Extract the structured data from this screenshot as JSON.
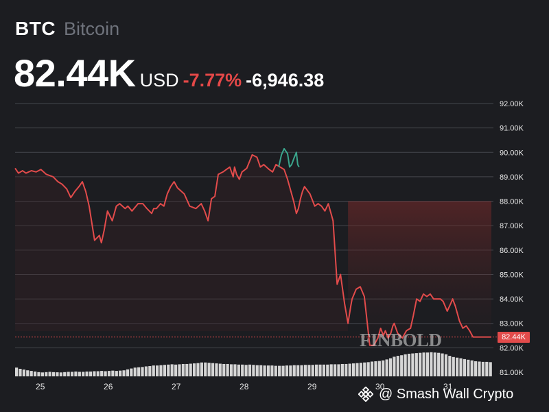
{
  "header": {
    "ticker": "BTC",
    "name": "Bitcoin",
    "price": "82.44K",
    "currency": "USD",
    "change_pct": "-7.77%",
    "change_abs": "-6,946.38"
  },
  "colors": {
    "background": "#1c1d21",
    "line_down": "#e24b4b",
    "line_peak": "#3aa58c",
    "change_negative": "#e44848",
    "volume": "#d6d6d6"
  },
  "watermark": "FINBOLD",
  "credit": {
    "icon": "binance-diamond-icon",
    "handle": "@ Smash Wall Crypto"
  },
  "chart_data": {
    "type": "line",
    "x_tick_labels": [
      "25",
      "26",
      "27",
      "28",
      "29",
      "30",
      "31"
    ],
    "x_ticks": [
      25,
      26,
      27,
      28,
      29,
      30,
      31
    ],
    "xlim": [
      24.7,
      31.73
    ],
    "y_tick_labels": [
      "81.00K",
      "82.00K",
      "83.00K",
      "84.00K",
      "85.00K",
      "86.00K",
      "87.00K",
      "88.00K",
      "89.00K",
      "90.00K",
      "91.00K",
      "92.00K"
    ],
    "y_ticks": [
      81000,
      82000,
      83000,
      84000,
      85000,
      86000,
      87000,
      88000,
      89000,
      90000,
      91000,
      92000
    ],
    "ylim": [
      81000,
      92000
    ],
    "last_price": 82440,
    "last_price_label": "82.44K",
    "series": [
      {
        "x": [
          24.7,
          24.75,
          24.81,
          24.86,
          24.94,
          25.01,
          25.08,
          25.16,
          25.26,
          25.33,
          25.39,
          25.46,
          25.52,
          25.58,
          25.64,
          25.69,
          25.74,
          25.79,
          25.87,
          25.94,
          25.97,
          26.01,
          26.06,
          26.13,
          26.19,
          26.24,
          26.32,
          26.36,
          26.42,
          26.51,
          26.58,
          26.64,
          26.71,
          26.74,
          26.78,
          26.84,
          26.89,
          26.94,
          26.99,
          27.04,
          27.09,
          27.19,
          27.27,
          27.36,
          27.44,
          27.49,
          27.54,
          27.59,
          27.64,
          27.69,
          27.76,
          27.81,
          27.86,
          27.91,
          27.93,
          27.96,
          28.0,
          28.04,
          28.11,
          28.19,
          28.26,
          28.31,
          28.36,
          28.44,
          28.49,
          28.54,
          28.6,
          28.66,
          28.71,
          28.76,
          28.8,
          28.84,
          28.87,
          28.9,
          28.93,
          28.96,
          29.04,
          29.11,
          29.16,
          29.21,
          29.26,
          29.31,
          29.38,
          29.44,
          29.49,
          29.55,
          29.6,
          29.64,
          29.66,
          29.69,
          29.72,
          29.78,
          29.84,
          29.92,
          29.98,
          30.04,
          30.08,
          30.12,
          30.15,
          30.19,
          30.23,
          30.26,
          30.28,
          30.33,
          30.4,
          30.46,
          30.52,
          30.56,
          30.61,
          30.66,
          30.71,
          30.76,
          30.81,
          30.86,
          30.92,
          30.96,
          31.0,
          31.06,
          31.11,
          31.14,
          31.18,
          31.24,
          31.29,
          31.34,
          31.39,
          31.44,
          31.48,
          31.52,
          31.56,
          31.59,
          31.66,
          31.71
        ],
        "y": [
          89350,
          89150,
          89250,
          89150,
          89250,
          89200,
          89300,
          89100,
          89000,
          88800,
          88700,
          88500,
          88150,
          88400,
          88600,
          88800,
          88400,
          87800,
          86400,
          86600,
          86300,
          86800,
          87600,
          87200,
          87800,
          87900,
          87700,
          87800,
          87600,
          87900,
          87900,
          87700,
          87500,
          87700,
          87700,
          87900,
          87800,
          88300,
          88600,
          88800,
          88550,
          88300,
          87800,
          87700,
          87900,
          87600,
          87200,
          88100,
          88200,
          89100,
          89200,
          89300,
          89400,
          89000,
          89400,
          89100,
          88900,
          89200,
          89350,
          89900,
          89800,
          89400,
          89500,
          89300,
          89200,
          89500,
          89400,
          89300,
          88900,
          88400,
          88000,
          87500,
          87700,
          88100,
          88400,
          88600,
          88300,
          87800,
          87900,
          87800,
          87600,
          87900,
          87200,
          84600,
          85000,
          83800,
          83000,
          83700,
          84000,
          84200,
          84400,
          84500,
          84100,
          82100,
          82100,
          82400,
          82800,
          82500,
          82700,
          82400,
          82600,
          82900,
          83000,
          82600,
          82400,
          82700,
          82800,
          83300,
          84000,
          83900,
          84200,
          84100,
          84200,
          84000,
          84000,
          84000,
          83900,
          83500,
          83800,
          84000,
          83700,
          83100,
          82800,
          82900,
          82700,
          82440,
          82440,
          82440,
          82440,
          82440,
          82440,
          82440
        ],
        "peak_x": [
          28.58,
          28.62,
          28.66,
          28.71,
          28.74,
          28.77,
          28.81,
          28.84,
          28.86,
          28.88
        ],
        "peak_y": [
          89400,
          89900,
          90150,
          89950,
          89400,
          89500,
          89800,
          90000,
          89500,
          89400
        ]
      }
    ],
    "volume": [
      0.58,
      0.5,
      0.45,
      0.4,
      0.36,
      0.32,
      0.28,
      0.26,
      0.28,
      0.3,
      0.28,
      0.27,
      0.26,
      0.28,
      0.3,
      0.3,
      0.32,
      0.3,
      0.3,
      0.32,
      0.32,
      0.34,
      0.34,
      0.36,
      0.34,
      0.36,
      0.38,
      0.36,
      0.38,
      0.4,
      0.46,
      0.52,
      0.58,
      0.6,
      0.62,
      0.66,
      0.68,
      0.72,
      0.72,
      0.74,
      0.76,
      0.78,
      0.8,
      0.78,
      0.8,
      0.82,
      0.82,
      0.84,
      0.86,
      0.88,
      0.92,
      0.92,
      0.9,
      0.88,
      0.86,
      0.84,
      0.82,
      0.82,
      0.8,
      0.8,
      0.78,
      0.78,
      0.76,
      0.78,
      0.76,
      0.74,
      0.74,
      0.72,
      0.72,
      0.72,
      0.7,
      0.7,
      0.7,
      0.72,
      0.72,
      0.74,
      0.74,
      0.74,
      0.76,
      0.76,
      0.76,
      0.78,
      0.78,
      0.78,
      0.78,
      0.8,
      0.8,
      0.8,
      0.82,
      0.82,
      0.84,
      0.86,
      0.88,
      0.9,
      0.92,
      0.94,
      0.98,
      1.0,
      1.02,
      1.06,
      1.12,
      1.2,
      1.3,
      1.36,
      1.4,
      1.46,
      1.5,
      1.52,
      1.54,
      1.56,
      1.58,
      1.58,
      1.6,
      1.58,
      1.56,
      1.52,
      1.46,
      1.36,
      1.28,
      1.24,
      1.2,
      1.14,
      1.1,
      1.06,
      1.0,
      0.98,
      0.96,
      0.96,
      0.94
    ]
  }
}
